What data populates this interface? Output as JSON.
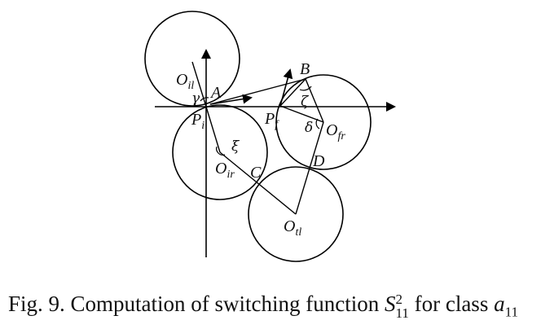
{
  "caption": {
    "prefix": "Fig. 9.  Computation of switching function ",
    "S_base": "S",
    "S_sup": "2",
    "S_sub": "11",
    "middle": " for class ",
    "a_base": "a",
    "a_sub": "11"
  },
  "labels": {
    "O_il": {
      "base": "O",
      "sub": "il"
    },
    "A": "A",
    "gamma": "γ",
    "P_i": {
      "base": "P",
      "sub": "i"
    },
    "B": "B",
    "zeta": "ζ",
    "P_f": {
      "base": "P",
      "sub": "f"
    },
    "delta": "δ",
    "O_fr": {
      "base": "O",
      "sub": "fr"
    },
    "xi": "ξ",
    "O_ir": {
      "base": "O",
      "sub": "ir"
    },
    "C": "C",
    "D": "D",
    "O_tl": {
      "base": "O",
      "sub": "tl"
    }
  }
}
